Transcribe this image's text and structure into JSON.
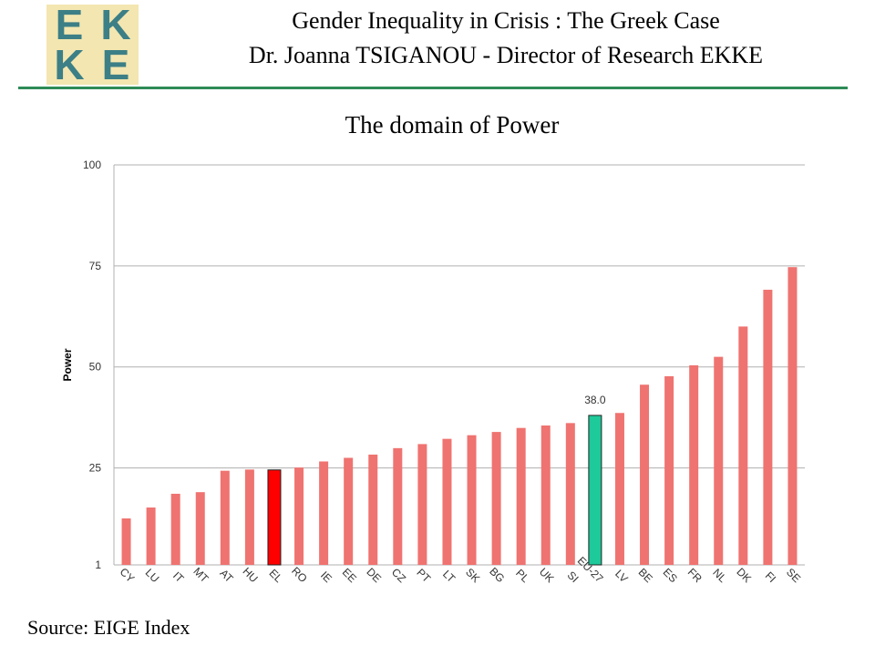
{
  "header": {
    "logo_letters": [
      "E",
      "K",
      "K",
      "E"
    ],
    "title": "Gender Inequality in Crisis : The Greek Case",
    "author_line": "Dr. Joanna TSIGANOU - Director of Research EKKE"
  },
  "chart_title": "The domain of Power",
  "source": "Source: EIGE Index",
  "colors": {
    "bar": "#ef7370",
    "highlight": "#ff0000",
    "eu": "#1ec99a",
    "grid": "#b0b0b0",
    "rule": "#2e8b57",
    "logo_bg": "#f3e6b0",
    "logo_text": "#3c7f86"
  },
  "chart_data": {
    "type": "bar",
    "ylabel": "Power",
    "xlabel": "",
    "ylim": [
      1,
      100
    ],
    "yticks": [
      1,
      25,
      50,
      75,
      100
    ],
    "grid": true,
    "categories": [
      "CY",
      "LU",
      "IT",
      "MT",
      "AT",
      "HU",
      "EL",
      "RO",
      "IE",
      "EE",
      "DE",
      "CZ",
      "PT",
      "LT",
      "SK",
      "BG",
      "PL",
      "UK",
      "SI",
      "EU-27",
      "LV",
      "BE",
      "ES",
      "FR",
      "NL",
      "DK",
      "FI",
      "SE"
    ],
    "values": [
      12.5,
      15.2,
      18.6,
      19.0,
      24.3,
      24.6,
      24.5,
      25.1,
      26.6,
      27.5,
      28.3,
      29.9,
      30.9,
      32.2,
      33.1,
      33.9,
      34.9,
      35.5,
      36.1,
      38.0,
      38.6,
      45.6,
      47.7,
      50.4,
      52.5,
      60.0,
      69.1,
      74.7
    ],
    "highlight": "EL",
    "reference": "EU-27",
    "data_labels": [
      {
        "category": "EU-27",
        "text": "38.0"
      }
    ]
  }
}
